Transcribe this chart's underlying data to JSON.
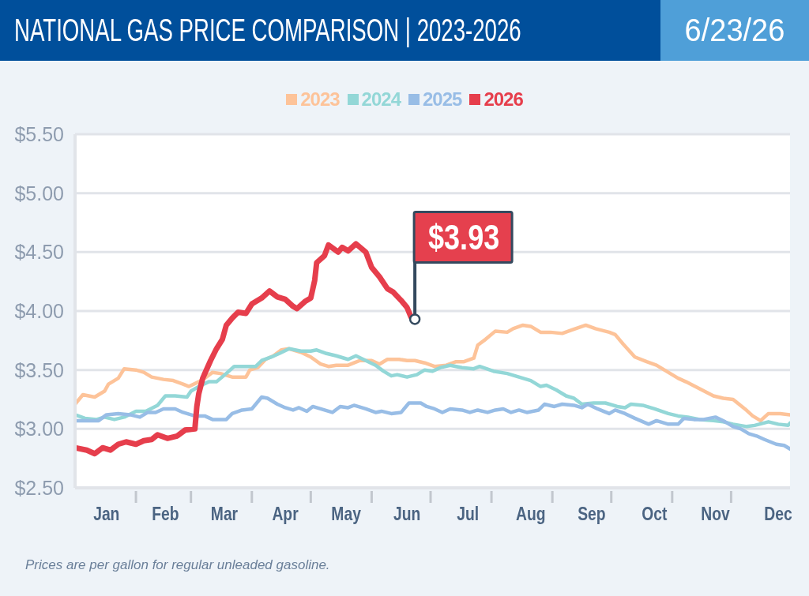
{
  "chart_data": {
    "type": "line",
    "title": "NATIONAL GAS PRICE COMPARISON | 2023-2026",
    "subtitle": "6/23/26",
    "xlim": [
      "--01-01",
      "--12-31"
    ],
    "xticks": [
      {
        "value": "--01-17",
        "label": "Jan"
      },
      {
        "value": "--02-01",
        "label": null
      },
      {
        "value": "--02-16",
        "label": "Feb"
      },
      {
        "value": "--03-01",
        "label": null
      },
      {
        "value": "--03-18",
        "label": "Mar"
      },
      {
        "value": "--04-01",
        "label": null
      },
      {
        "value": "--04-18",
        "label": "Apr"
      },
      {
        "value": "--05-01",
        "label": null
      },
      {
        "value": "--05-19",
        "label": "May"
      },
      {
        "value": "--06-01",
        "label": null
      },
      {
        "value": "--06-19",
        "label": "Jun"
      },
      {
        "value": "--07-01",
        "label": null
      },
      {
        "value": "--07-20",
        "label": "Jul"
      },
      {
        "value": "--08-01",
        "label": null
      },
      {
        "value": "--08-21",
        "label": "Aug"
      },
      {
        "value": "--09-01",
        "label": null
      },
      {
        "value": "--09-21",
        "label": "Sep"
      },
      {
        "value": "--10-01",
        "label": null
      },
      {
        "value": "--10-23",
        "label": "Oct"
      },
      {
        "value": "--11-01",
        "label": null
      },
      {
        "value": "--11-23",
        "label": "Nov"
      },
      {
        "value": "--12-01",
        "label": null
      },
      {
        "value": "--12-25",
        "label": "Dec"
      }
    ],
    "ylim": [
      2.5,
      5.5
    ],
    "yticks": [
      {
        "value": 2.5,
        "label": "$2.50"
      },
      {
        "value": 3.0,
        "label": "$3.00"
      },
      {
        "value": 3.5,
        "label": "$3.50"
      },
      {
        "value": 4.0,
        "label": "$4.00"
      },
      {
        "value": 4.5,
        "label": "$4.50"
      },
      {
        "value": 5.0,
        "label": "$5.00"
      },
      {
        "value": 5.5,
        "label": "$5.50"
      }
    ],
    "grid": "y",
    "legend": "top",
    "series": [
      {
        "name": "2023",
        "color": "#fdc399",
        "x": [
          "--01-01",
          "--01-05",
          "--01-11",
          "--01-16",
          "--01-18",
          "--01-23",
          "--01-26",
          "--02-01",
          "--02-05",
          "--02-09",
          "--02-15",
          "--02-20",
          "--02-25",
          "--02-28",
          "--03-05",
          "--03-08",
          "--03-12",
          "--03-16",
          "--03-22",
          "--03-29",
          "--03-31",
          "--04-04",
          "--04-08",
          "--04-12",
          "--04-16",
          "--04-20",
          "--04-26",
          "--05-01",
          "--05-06",
          "--05-10",
          "--05-14",
          "--05-20",
          "--05-23",
          "--05-26",
          "--06-01",
          "--06-05",
          "--06-09",
          "--06-15",
          "--06-19",
          "--06-23",
          "--06-28",
          "--07-03",
          "--07-09",
          "--07-14",
          "--07-18",
          "--07-23",
          "--07-25",
          "--07-29",
          "--08-03",
          "--08-09",
          "--08-12",
          "--08-17",
          "--08-21",
          "--08-26",
          "--08-31",
          "--09-06",
          "--09-11",
          "--09-18",
          "--09-23",
          "--09-30",
          "--10-03",
          "--10-07",
          "--10-13",
          "--10-19",
          "--10-24",
          "--10-30",
          "--11-04",
          "--11-08",
          "--11-15",
          "--11-22",
          "--11-27",
          "--12-02",
          "--12-08",
          "--12-12",
          "--12-16",
          "--12-20",
          "--12-26",
          "--12-31"
        ],
        "values": [
          3.21,
          3.29,
          3.27,
          3.32,
          3.38,
          3.43,
          3.51,
          3.5,
          3.48,
          3.44,
          3.42,
          3.41,
          3.38,
          3.36,
          3.4,
          3.43,
          3.48,
          3.47,
          3.44,
          3.44,
          3.5,
          3.52,
          3.59,
          3.62,
          3.67,
          3.68,
          3.65,
          3.61,
          3.55,
          3.53,
          3.54,
          3.54,
          3.56,
          3.58,
          3.58,
          3.55,
          3.59,
          3.59,
          3.58,
          3.58,
          3.56,
          3.53,
          3.54,
          3.57,
          3.57,
          3.6,
          3.71,
          3.76,
          3.83,
          3.82,
          3.85,
          3.88,
          3.87,
          3.82,
          3.82,
          3.81,
          3.84,
          3.88,
          3.85,
          3.82,
          3.8,
          3.72,
          3.61,
          3.57,
          3.54,
          3.48,
          3.43,
          3.4,
          3.34,
          3.28,
          3.26,
          3.25,
          3.17,
          3.11,
          3.07,
          3.13,
          3.13,
          3.12
        ]
      },
      {
        "name": "2024",
        "color": "#93d7d7",
        "x": [
          "--01-01",
          "--01-06",
          "--01-12",
          "--01-16",
          "--01-21",
          "--01-26",
          "--02-01",
          "--02-06",
          "--02-12",
          "--02-16",
          "--02-21",
          "--02-27",
          "--03-01",
          "--03-05",
          "--03-10",
          "--03-14",
          "--03-19",
          "--03-23",
          "--03-29",
          "--04-03",
          "--04-06",
          "--04-11",
          "--04-15",
          "--04-20",
          "--04-26",
          "--05-01",
          "--05-04",
          "--05-09",
          "--05-14",
          "--05-20",
          "--05-24",
          "--05-29",
          "--06-03",
          "--06-07",
          "--06-11",
          "--06-14",
          "--06-19",
          "--06-24",
          "--06-28",
          "--07-02",
          "--07-06",
          "--07-11",
          "--07-17",
          "--07-23",
          "--07-26",
          "--08-02",
          "--08-09",
          "--08-15",
          "--08-21",
          "--08-26",
          "--08-29",
          "--09-03",
          "--09-08",
          "--09-12",
          "--09-16",
          "--09-22",
          "--09-28",
          "--10-04",
          "--10-08",
          "--10-11",
          "--10-17",
          "--10-23",
          "--10-30",
          "--11-04",
          "--11-09",
          "--11-15",
          "--11-22",
          "--11-27",
          "--12-02",
          "--12-09",
          "--12-13",
          "--12-20",
          "--12-25",
          "--12-30",
          "--12-31"
        ],
        "values": [
          3.12,
          3.09,
          3.08,
          3.1,
          3.08,
          3.1,
          3.15,
          3.15,
          3.2,
          3.28,
          3.28,
          3.27,
          3.32,
          3.36,
          3.4,
          3.4,
          3.47,
          3.53,
          3.53,
          3.53,
          3.58,
          3.61,
          3.64,
          3.68,
          3.66,
          3.66,
          3.67,
          3.64,
          3.62,
          3.59,
          3.62,
          3.58,
          3.54,
          3.49,
          3.45,
          3.46,
          3.44,
          3.46,
          3.5,
          3.49,
          3.52,
          3.54,
          3.52,
          3.51,
          3.53,
          3.49,
          3.47,
          3.44,
          3.41,
          3.36,
          3.37,
          3.33,
          3.28,
          3.26,
          3.21,
          3.22,
          3.22,
          3.19,
          3.18,
          3.21,
          3.2,
          3.17,
          3.13,
          3.11,
          3.1,
          3.08,
          3.07,
          3.06,
          3.04,
          3.02,
          3.03,
          3.06,
          3.04,
          3.03,
          3.05
        ]
      },
      {
        "name": "2025",
        "color": "#98bde6",
        "x": [
          "--01-01",
          "--01-07",
          "--01-13",
          "--01-17",
          "--01-23",
          "--01-29",
          "--02-03",
          "--02-07",
          "--02-11",
          "--02-15",
          "--02-21",
          "--02-25",
          "--03-03",
          "--03-08",
          "--03-12",
          "--03-19",
          "--03-22",
          "--03-27",
          "--04-01",
          "--04-06",
          "--04-09",
          "--04-14",
          "--04-18",
          "--04-22",
          "--04-25",
          "--04-29",
          "--05-02",
          "--05-06",
          "--05-12",
          "--05-16",
          "--05-20",
          "--05-23",
          "--05-29",
          "--06-03",
          "--06-06",
          "--06-11",
          "--06-16",
          "--06-20",
          "--06-26",
          "--06-29",
          "--07-03",
          "--07-07",
          "--07-11",
          "--07-17",
          "--07-21",
          "--07-25",
          "--07-30",
          "--08-03",
          "--08-07",
          "--08-11",
          "--08-15",
          "--08-19",
          "--08-25",
          "--08-28",
          "--09-02",
          "--09-06",
          "--09-12",
          "--09-16",
          "--09-19",
          "--09-24",
          "--09-30",
          "--10-03",
          "--10-08",
          "--10-13",
          "--10-20",
          "--10-24",
          "--10-30",
          "--11-04",
          "--11-07",
          "--11-12",
          "--11-17",
          "--11-23",
          "--11-28",
          "--12-02",
          "--12-06",
          "--12-10",
          "--12-14",
          "--12-18",
          "--12-24",
          "--12-28",
          "--12-31"
        ],
        "values": [
          3.07,
          3.07,
          3.07,
          3.12,
          3.13,
          3.12,
          3.1,
          3.14,
          3.14,
          3.17,
          3.17,
          3.14,
          3.11,
          3.11,
          3.08,
          3.08,
          3.13,
          3.16,
          3.17,
          3.27,
          3.26,
          3.21,
          3.18,
          3.16,
          3.18,
          3.15,
          3.19,
          3.17,
          3.14,
          3.19,
          3.18,
          3.2,
          3.17,
          3.14,
          3.15,
          3.13,
          3.14,
          3.22,
          3.22,
          3.19,
          3.17,
          3.14,
          3.17,
          3.16,
          3.14,
          3.16,
          3.14,
          3.16,
          3.17,
          3.14,
          3.16,
          3.14,
          3.16,
          3.21,
          3.19,
          3.21,
          3.2,
          3.18,
          3.21,
          3.17,
          3.13,
          3.16,
          3.13,
          3.09,
          3.04,
          3.07,
          3.04,
          3.04,
          3.09,
          3.08,
          3.08,
          3.1,
          3.06,
          3.02,
          3.0,
          2.96,
          2.94,
          2.91,
          2.87,
          2.86,
          2.83
        ]
      },
      {
        "name": "2026",
        "color": "#e63e4c",
        "x": [
          "--01-01",
          "--01-07",
          "--01-11",
          "--01-15",
          "--01-19",
          "--01-23",
          "--01-27",
          "--02-01",
          "--02-05",
          "--02-09",
          "--02-12",
          "--02-17",
          "--02-22",
          "--02-26",
          "--03-03",
          "--03-04",
          "--03-05",
          "--03-07",
          "--03-11",
          "--03-14",
          "--03-17",
          "--03-19",
          "--03-22",
          "--03-25",
          "--03-29",
          "--04-01",
          "--04-06",
          "--04-10",
          "--04-14",
          "--04-18",
          "--04-22",
          "--04-24",
          "--04-28",
          "--05-01",
          "--05-03",
          "--05-04",
          "--05-08",
          "--05-10",
          "--05-15",
          "--05-17",
          "--05-20",
          "--05-24",
          "--05-29",
          "--06-01",
          "--06-05",
          "--06-09",
          "--06-12",
          "--06-16",
          "--06-19",
          "--06-21",
          "--06-23"
        ],
        "values": [
          2.84,
          2.82,
          2.79,
          2.84,
          2.82,
          2.87,
          2.89,
          2.87,
          2.9,
          2.91,
          2.95,
          2.92,
          2.94,
          2.99,
          3.0,
          3.19,
          3.3,
          3.43,
          3.58,
          3.68,
          3.76,
          3.88,
          3.94,
          3.99,
          3.98,
          4.06,
          4.11,
          4.17,
          4.12,
          4.1,
          4.04,
          4.02,
          4.08,
          4.11,
          4.26,
          4.41,
          4.47,
          4.56,
          4.5,
          4.54,
          4.51,
          4.57,
          4.5,
          4.37,
          4.29,
          4.19,
          4.16,
          4.09,
          4.03,
          3.95,
          3.93
        ]
      }
    ],
    "annotations": [
      {
        "text": "$3.93",
        "x": "--06-23",
        "y": 3.93
      },
      "Prices are per gallon for regular unleaded gasoline."
    ]
  }
}
